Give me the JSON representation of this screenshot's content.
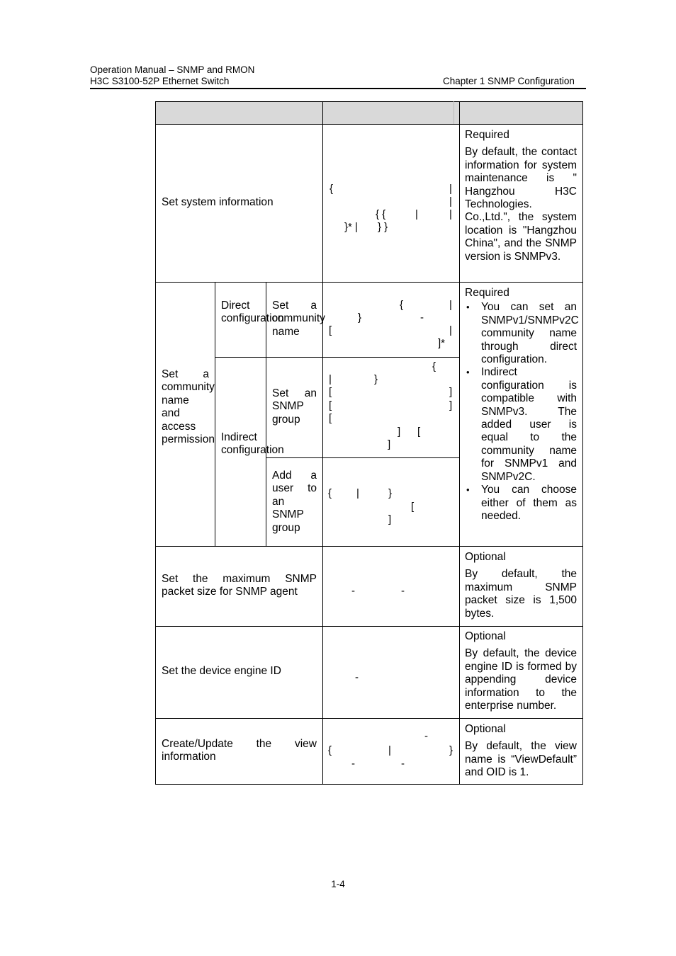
{
  "header": {
    "line1": "Operation Manual – SNMP and RMON",
    "line2": "H3C S3100-52P Ethernet Switch",
    "chapter": "Chapter 1  SNMP Configuration"
  },
  "rows": [
    {
      "operation": "Set system information",
      "command_glyphs": [
        "{",
        "|",
        "|",
        "{ {",
        "|",
        "|",
        "}* |",
        "} }"
      ],
      "remarks": [
        "Required",
        "By default, the contact information for system maintenance is \" Hangzhou H3C Technologies. Co.,Ltd.\", the system location is \"Hangzhou China\", and the SNMP version is SNMPv3."
      ]
    },
    {
      "operation": "Set a community name and access permission",
      "direct": "Direct configuration",
      "indirect": "Indirect configuration",
      "sub": [
        {
          "action": "Set a community name",
          "command_glyphs": [
            "{",
            "|",
            "}",
            "-",
            "[",
            "|",
            "]*"
          ]
        },
        {
          "action": "Set an SNMP group",
          "command_glyphs": [
            "{",
            "|",
            "}",
            "[",
            "]",
            "[",
            "]",
            "[",
            "]",
            "[",
            "]"
          ]
        },
        {
          "action": "Add a user to an SNMP group",
          "command_glyphs": [
            "{",
            "|",
            "}",
            "[",
            "]"
          ]
        }
      ],
      "remarks": {
        "title": "Required",
        "bullets": [
          "You can set an SNMPv1/SNMPv2C community name through direct configuration.",
          "Indirect configuration is compatible with SNMPv3. The added user is equal to the community name for SNMPv1 and SNMPv2C.",
          "You can choose either of them as needed."
        ]
      }
    },
    {
      "operation": "Set the maximum SNMP packet size for SNMP agent",
      "command_glyphs": [
        "-",
        "-"
      ],
      "remarks": [
        "Optional",
        "By default, the maximum SNMP packet size is 1,500 bytes."
      ]
    },
    {
      "operation": "Set the device engine ID",
      "command_glyphs": [
        "-"
      ],
      "remarks": [
        "Optional",
        "By default, the device engine ID is formed by appending device information to the enterprise number."
      ]
    },
    {
      "operation": "Create/Update the view information",
      "command_glyphs": [
        "-",
        "{",
        "|",
        "}",
        "-",
        "-"
      ],
      "remarks": [
        "Optional",
        "By default, the view name is “ViewDefault” and OID is 1."
      ]
    }
  ],
  "footer": {
    "page": "1-4"
  }
}
